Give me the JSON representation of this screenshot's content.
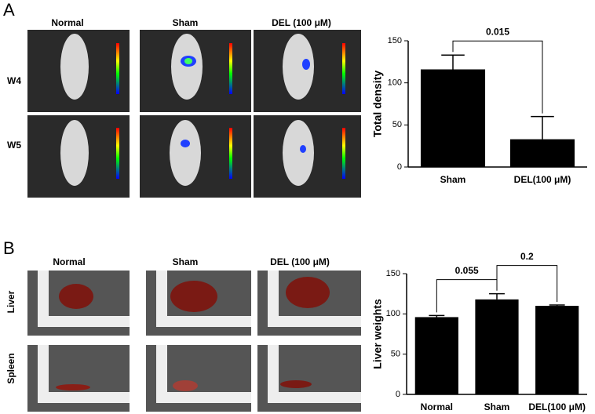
{
  "panel_a": {
    "label": "A",
    "columns": [
      "Normal",
      "Sham",
      "DEL (100 μM)"
    ],
    "rows": [
      "W4",
      "W5"
    ]
  },
  "panel_b": {
    "label": "B",
    "columns": [
      "Normal",
      "Sham",
      "DEL (100 μM)"
    ],
    "rows": [
      "Liver",
      "Spleen"
    ]
  },
  "chart_data": [
    {
      "type": "bar",
      "y_label": "Total density",
      "categories": [
        "Sham",
        "DEL(100 μM)"
      ],
      "values": [
        116,
        33
      ],
      "errors": [
        17,
        27
      ],
      "color": "#000000",
      "ylim": [
        0,
        150
      ],
      "yticks": [
        0,
        50,
        100,
        150
      ],
      "annotations": [
        {
          "text": "0.015",
          "from": 0,
          "to": 1
        }
      ]
    },
    {
      "type": "bar",
      "y_label": "Liver weights",
      "categories": [
        "Normal",
        "Sham",
        "DEL(100 μM)"
      ],
      "values": [
        96,
        118,
        110
      ],
      "errors": [
        2,
        7,
        1
      ],
      "color": "#000000",
      "ylim": [
        0,
        150
      ],
      "yticks": [
        0,
        50,
        100,
        150
      ],
      "annotations": [
        {
          "text": "0.055",
          "from": 0,
          "to": 1
        },
        {
          "text": "0.2",
          "from": 1,
          "to": 2
        }
      ]
    }
  ]
}
